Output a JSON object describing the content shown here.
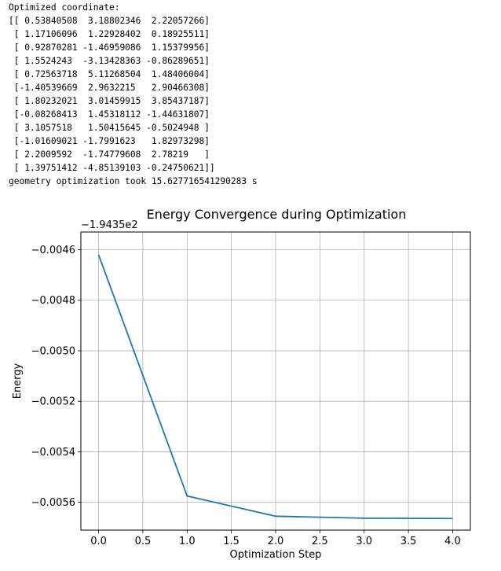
{
  "console": {
    "lines": [
      "Optimized coordinate:",
      "[[ 0.53840508  3.18802346  2.22057266]",
      " [ 1.17106096  1.22928402  0.18925511]",
      " [ 0.92870281 -1.46959086  1.15379956]",
      " [ 1.5524243  -3.13428363 -0.86289651]",
      " [ 0.72563718  5.11268504  1.48406004]",
      " [-1.40539669  2.9632215   2.90466308]",
      " [ 1.80232021  3.01459915  3.85437187]",
      " [-0.08268413  1.45318112 -1.44631807]",
      " [ 3.1057518   1.50415645 -0.5024948 ]",
      " [-1.01609021 -1.7991623   1.82973298]",
      " [ 2.2009592  -1.74779608  2.78219   ]",
      " [ 1.39751412 -4.85139103 -0.24750621]]",
      "geometry optimization took 15.627716541290283 s"
    ]
  },
  "chart_data": {
    "type": "line",
    "title": "Energy Convergence during Optimization",
    "xlabel": "Optimization Step",
    "ylabel": "Energy",
    "offset_text": "−1.9435e2",
    "x": [
      0,
      1,
      2,
      3,
      4
    ],
    "series": [
      {
        "values": [
          -0.00462,
          -0.005575,
          -0.005655,
          -0.005663,
          -0.005664
        ],
        "color": "#1f77b4"
      }
    ],
    "xlim": [
      -0.2,
      4.2
    ],
    "ylim": [
      -0.00571,
      -0.00453
    ],
    "xticks": [
      0.0,
      0.5,
      1.0,
      1.5,
      2.0,
      2.5,
      3.0,
      3.5,
      4.0
    ],
    "xtick_labels": [
      "0.0",
      "0.5",
      "1.0",
      "1.5",
      "2.0",
      "2.5",
      "3.0",
      "3.5",
      "4.0"
    ],
    "yticks": [
      -0.0046,
      -0.0048,
      -0.005,
      -0.0052,
      -0.0054,
      -0.0056
    ],
    "ytick_labels": [
      "−0.0046",
      "−0.0048",
      "−0.0050",
      "−0.0052",
      "−0.0054",
      "−0.0056"
    ],
    "grid": true,
    "legend": "none"
  }
}
